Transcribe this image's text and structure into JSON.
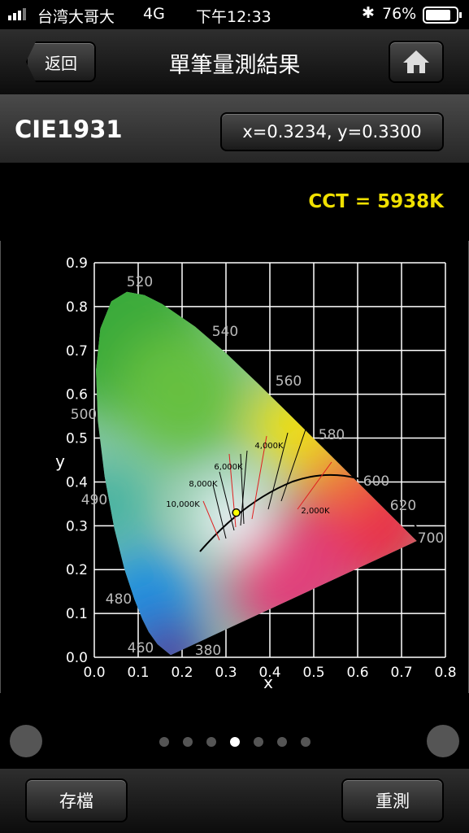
{
  "status_bar": {
    "carrier": "台湾大哥大",
    "network": "4G",
    "time": "下午12:33",
    "battery": "76%"
  },
  "nav": {
    "back": "返回",
    "title": "單筆量測結果"
  },
  "header": {
    "title": "CIE1931",
    "coordinates": "x=0.3234, y=0.3300"
  },
  "cct": "CCT = 5938K",
  "chart_data": {
    "type": "scatter",
    "xlabel": "x",
    "ylabel": "y",
    "xlim": [
      0,
      0.8
    ],
    "ylim": [
      0,
      0.9
    ],
    "xticks": [
      {
        "value": 0,
        "label": "0.0"
      },
      0.1,
      0.2,
      0.3,
      0.4,
      0.5,
      0.6,
      0.7,
      0.8
    ],
    "yticks": [
      {
        "value": 0,
        "label": "0.0"
      },
      0.1,
      0.2,
      0.3,
      0.4,
      0.5,
      0.6,
      0.7,
      0.8,
      0.9
    ],
    "grid": true,
    "series": [
      {
        "color": "#ffff00",
        "x": [
          0.3234
        ],
        "y": [
          0.33
        ]
      }
    ],
    "wavelength_labels": [
      "520",
      "540",
      "560",
      "580",
      "600",
      "620",
      "700",
      "500",
      "490",
      "480",
      "460",
      "380"
    ],
    "cct_labels": [
      "10,000K",
      "8,000K",
      "6,000K",
      "4,000K",
      "2,000K"
    ]
  },
  "footer": {
    "save": "存檔",
    "remeasure": "重測"
  }
}
